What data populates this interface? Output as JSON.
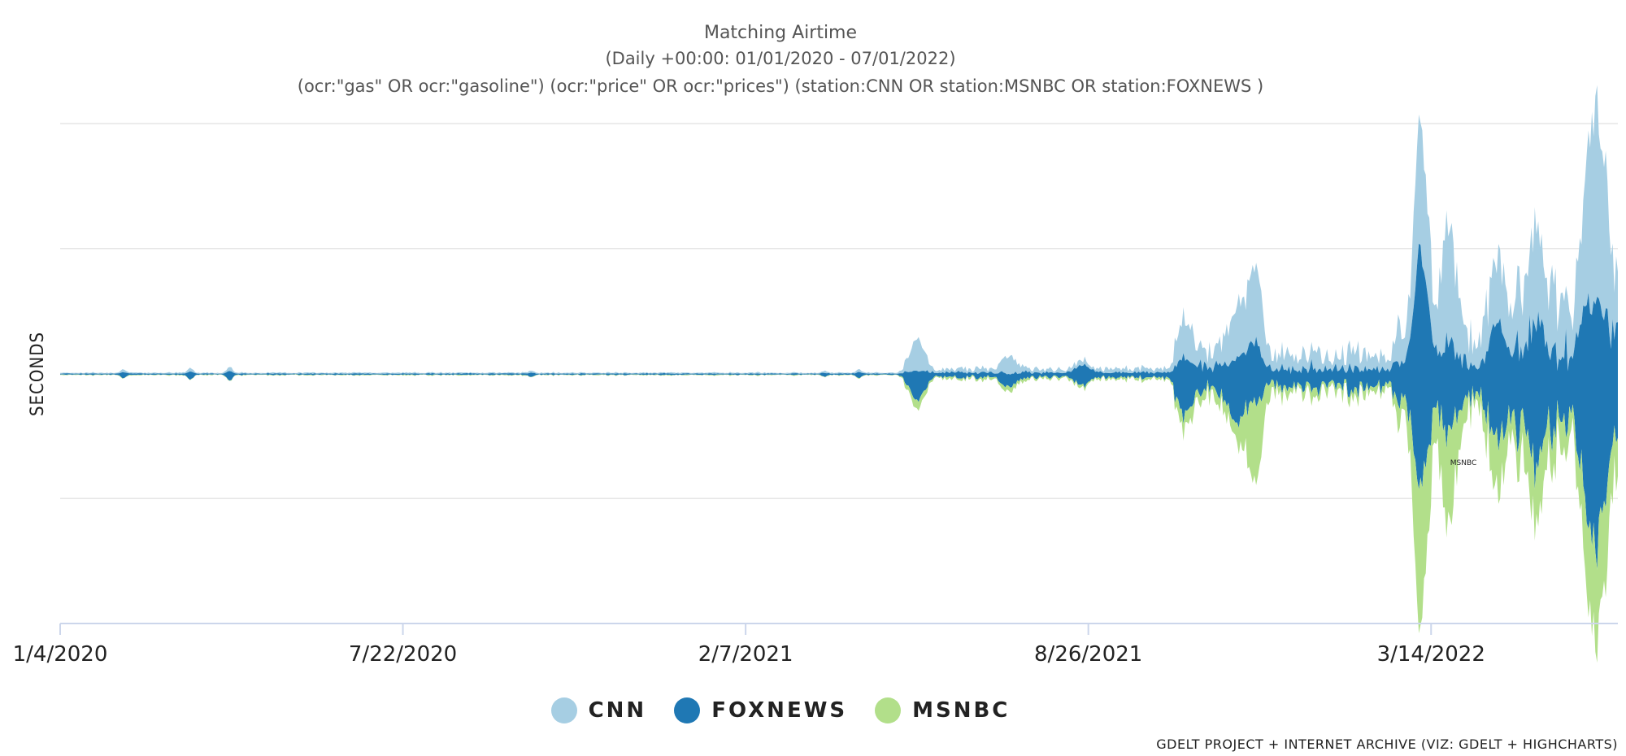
{
  "chart_data": {
    "type": "area",
    "stacking": "streamgraph",
    "title": "Matching Airtime",
    "subtitle_1": "(Daily +00:00: 01/01/2020 - 07/01/2022)",
    "subtitle_2": "(ocr:\"gas\" OR ocr:\"gasoline\") (ocr:\"price\" OR ocr:\"prices\") (station:CNN OR station:MSNBC OR station:FOXNEWS )",
    "xlabel": "",
    "ylabel": "SECONDS",
    "x_tick_labels": [
      "1/4/2020",
      "7/22/2020",
      "2/7/2021",
      "8/26/2021",
      "3/14/2022"
    ],
    "x_tick_dates": [
      "2020-01-04",
      "2020-07-22",
      "2021-02-07",
      "2021-08-26",
      "2022-03-14"
    ],
    "x_range": [
      "2020-01-04",
      "2022-07-01"
    ],
    "grid": "horizontal",
    "legend_position": "bottom-center",
    "annotation": "MSNBC",
    "colors": {
      "CNN": "#a6cee3",
      "FOXNEWS": "#1f78b4",
      "MSNBC": "#b2df8a"
    },
    "series": [
      {
        "name": "CNN"
      },
      {
        "name": "FOXNEWS"
      },
      {
        "name": "MSNBC"
      }
    ],
    "peaks": [
      {
        "date": "2021-05-18",
        "CNN": 32,
        "FOXNEWS": 28,
        "MSNBC": 8
      },
      {
        "date": "2021-07-11",
        "CNN": 16,
        "FOXNEWS": 10,
        "MSNBC": 4
      },
      {
        "date": "2021-08-23",
        "CNN": 2,
        "FOXNEWS": 18,
        "MSNBC": 1
      },
      {
        "date": "2021-10-22",
        "CNN": 32,
        "FOXNEWS": 46,
        "MSNBC": 10
      },
      {
        "date": "2021-11-20",
        "CNN": 44,
        "FOXNEWS": 58,
        "MSNBC": 10
      },
      {
        "date": "2021-12-01",
        "CNN": 70,
        "FOXNEWS": 46,
        "MSNBC": 84
      },
      {
        "date": "2022-03-08",
        "CNN": 105,
        "FOXNEWS": 210,
        "MSNBC": 135
      },
      {
        "date": "2022-03-24",
        "CNN": 100,
        "FOXNEWS": 60,
        "MSNBC": 90
      },
      {
        "date": "2022-04-22",
        "CNN": 45,
        "FOXNEWS": 100,
        "MSNBC": 45
      },
      {
        "date": "2022-05-15",
        "CNN": 55,
        "FOXNEWS": 95,
        "MSNBC": 40
      },
      {
        "date": "2022-06-15",
        "CNN": 120,
        "FOXNEWS": 160,
        "MSNBC": 60
      },
      {
        "date": "2022-06-22",
        "CNN": 110,
        "FOXNEWS": 140,
        "MSNBC": 65
      }
    ],
    "credits": "GDELT PROJECT + INTERNET ARCHIVE (VIZ: GDELT + HIGHCHARTS)"
  }
}
